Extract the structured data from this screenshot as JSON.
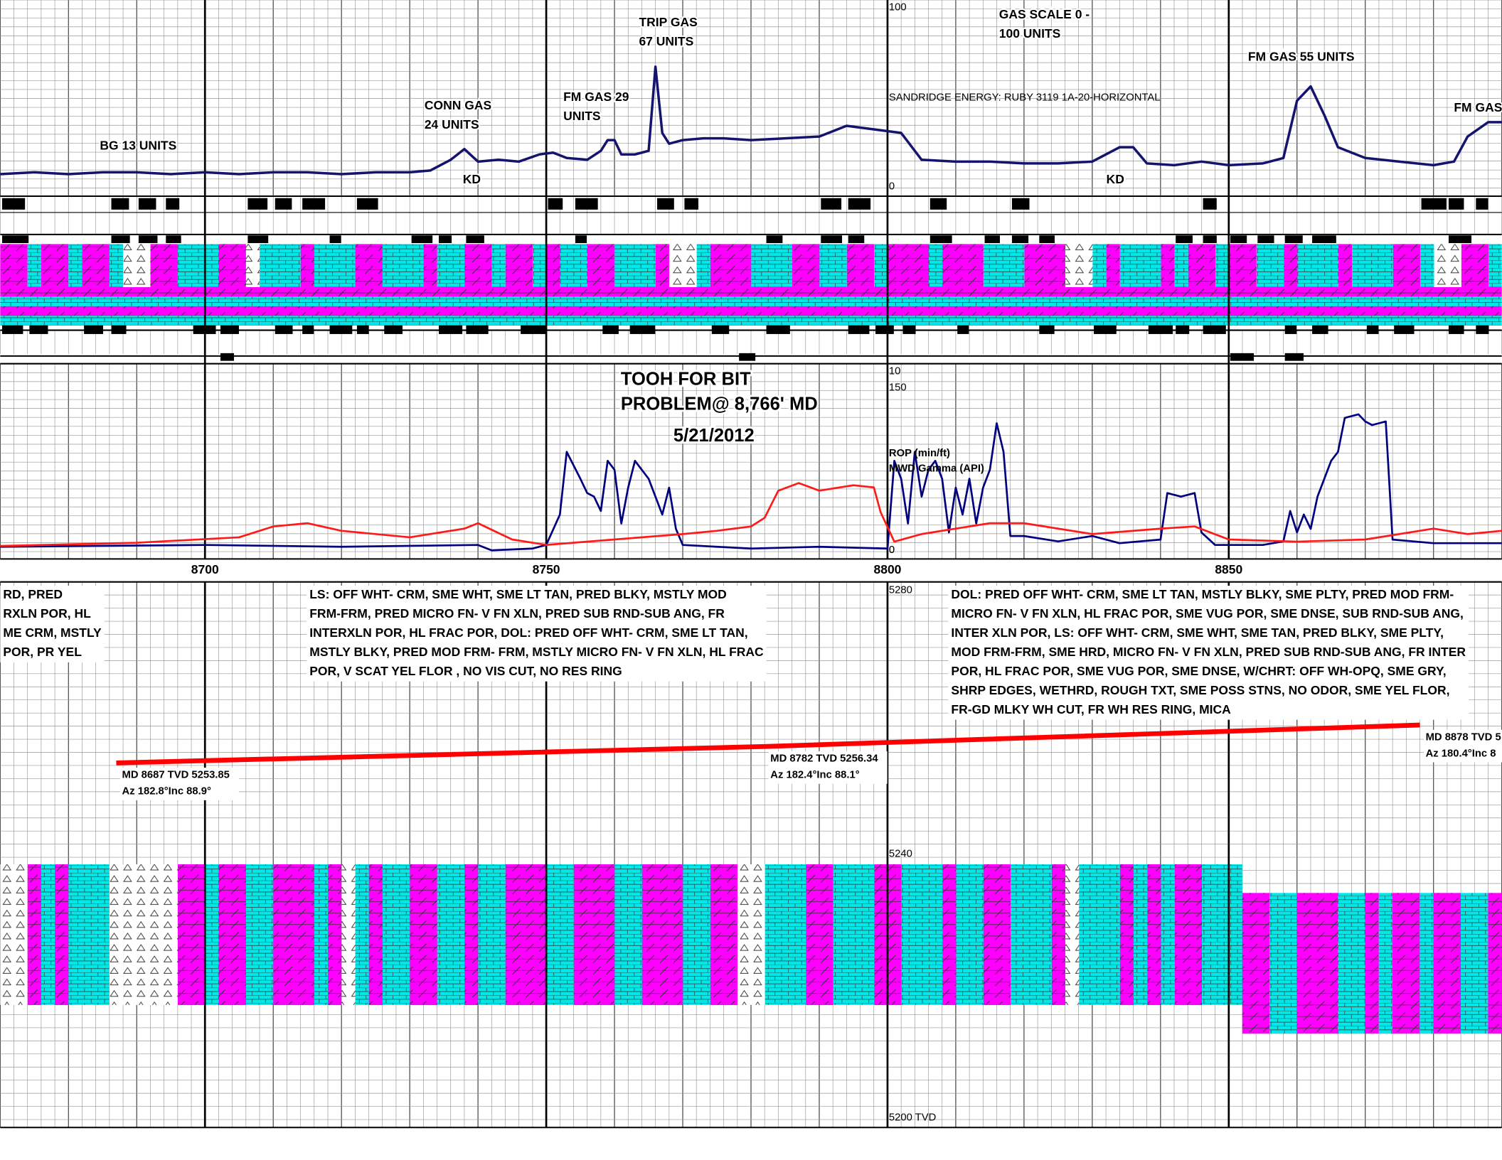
{
  "chart_data": [
    {
      "type": "line",
      "title": "SANDRIDGE ENERGY:  RUBY 3119 1A-20-HORIZONTAL",
      "xlim": [
        8670,
        8890
      ],
      "ylim": [
        0,
        100
      ],
      "yticks": [
        0,
        100
      ],
      "color": "#14146e",
      "x": [
        8670,
        8675,
        8680,
        8685,
        8690,
        8695,
        8700,
        8705,
        8710,
        8715,
        8720,
        8725,
        8730,
        8733,
        8736,
        8738,
        8740,
        8743,
        8746,
        8749,
        8751,
        8753,
        8756,
        8758,
        8759,
        8760,
        8761,
        8763,
        8765,
        8766,
        8767,
        8768,
        8770,
        8773,
        8776,
        8780,
        8785,
        8790,
        8794,
        8798,
        8800,
        8802,
        8805,
        8810,
        8815,
        8820,
        8825,
        8830,
        8834,
        8836,
        8838,
        8842,
        8846,
        8850,
        8855,
        8858,
        8860,
        8862,
        8864,
        8866,
        8870,
        8875,
        8880,
        8883,
        8885,
        8888,
        8890
      ],
      "values": [
        7,
        8,
        7,
        8,
        8,
        7,
        8,
        7,
        8,
        8,
        7,
        8,
        8,
        9,
        15,
        21,
        14,
        15,
        14,
        18,
        19,
        16,
        15,
        20,
        26,
        26,
        18,
        18,
        20,
        67,
        30,
        24,
        26,
        27,
        27,
        26,
        27,
        28,
        34,
        32,
        31,
        30,
        15,
        14,
        14,
        13,
        13,
        14,
        22,
        22,
        13,
        12,
        14,
        12,
        13,
        16,
        48,
        56,
        40,
        22,
        16,
        14,
        12,
        14,
        28,
        36,
        36
      ],
      "annotations": [
        [
          "BG 13 UNITS"
        ],
        [
          "CONN GAS",
          "24 UNITS"
        ],
        [
          "KD"
        ],
        [
          "FM GAS 29",
          "UNITS"
        ],
        [
          "TRIP GAS",
          "67 UNITS"
        ],
        [
          "GAS SCALE 0 -",
          "100 UNITS"
        ],
        [
          "KD"
        ],
        [
          "FM GAS 55 UNITS"
        ],
        [
          "FM GAS"
        ]
      ]
    },
    {
      "type": "line",
      "xlim": [
        8670,
        8890
      ],
      "xticks": [
        8700,
        8750,
        8800,
        8850
      ],
      "ylim": [
        0,
        10
      ],
      "yticks": [
        0,
        10
      ],
      "y2lim": [
        0,
        150
      ],
      "y2ticks": [
        0,
        150
      ],
      "series": [
        {
          "name": "ROP (min/ft)",
          "color": "#00007f",
          "x": [
            8670,
            8700,
            8720,
            8740,
            8742,
            8748,
            8750,
            8752,
            8753,
            8755,
            8756,
            8757,
            8758,
            8759,
            8760,
            8761,
            8762,
            8763,
            8765,
            8766,
            8767,
            8768,
            8769,
            8770,
            8775,
            8780,
            8790,
            8800,
            8801,
            8802,
            8803,
            8804,
            8805,
            8806,
            8807,
            8808,
            8809,
            8810,
            8811,
            8812,
            8813,
            8814,
            8815,
            8816,
            8817,
            8818,
            8820,
            8825,
            8830,
            8834,
            8840,
            8841,
            8843,
            8845,
            8846,
            8848,
            8855,
            8858,
            8859,
            8860,
            8861,
            8862,
            8863,
            8865,
            8866,
            8867,
            8869,
            8870,
            8871,
            8873,
            8874,
            8880,
            8885,
            8890
          ],
          "values": [
            0.2,
            0.3,
            0.2,
            0.3,
            0.0,
            0.1,
            0.3,
            2,
            5.5,
            4,
            3.2,
            3.0,
            2.2,
            5,
            4.5,
            1.5,
            3.5,
            5,
            4,
            3,
            2,
            3.5,
            1.2,
            0.3,
            0.2,
            0.1,
            0.2,
            0.1,
            5,
            4,
            1.5,
            5.5,
            3,
            4.5,
            5,
            4,
            1,
            3.5,
            2,
            4,
            1.5,
            3.5,
            4.5,
            7.1,
            5.5,
            0.8,
            0.8,
            0.5,
            0.8,
            0.4,
            0.6,
            3.2,
            3.0,
            3.2,
            1.0,
            0.3,
            0.3,
            0.5,
            2.2,
            1.0,
            2.0,
            1.2,
            3.0,
            5,
            5.5,
            7.4,
            7.6,
            7.2,
            7.0,
            7.2,
            0.6,
            0.4,
            0.4,
            0.4
          ]
        },
        {
          "name": "MWD Gamma (API)",
          "color": "#ff1a1a",
          "axis": "y2",
          "x": [
            8670,
            8690,
            8705,
            8710,
            8715,
            8720,
            8730,
            8738,
            8740,
            8745,
            8750,
            8760,
            8770,
            8775,
            8780,
            8782,
            8784,
            8787,
            8790,
            8795,
            8798,
            8799,
            8801,
            8805,
            8810,
            8815,
            8820,
            8830,
            8840,
            8845,
            8850,
            8860,
            8870,
            8880,
            8885,
            8890
          ],
          "values": [
            4,
            7,
            12,
            22,
            25,
            18,
            12,
            20,
            25,
            10,
            5,
            10,
            15,
            18,
            22,
            30,
            55,
            62,
            55,
            60,
            58,
            35,
            8,
            15,
            20,
            25,
            25,
            15,
            20,
            22,
            10,
            8,
            10,
            20,
            15,
            18
          ]
        }
      ],
      "annotations": [
        [
          "TOOH FOR BIT"
        ],
        [
          "PROBLEM@ 8,766' MD"
        ],
        [
          "5/21/2012"
        ]
      ]
    },
    {
      "type": "line",
      "xlim": [
        8670,
        8890
      ],
      "ylim": [
        5280,
        5200
      ],
      "yticks": [
        {
          "value": 5200,
          "label": "5200 TVD"
        },
        5240,
        5280
      ],
      "color": "#ff0000",
      "x": [
        8687,
        8782,
        8878
      ],
      "values": [
        5253.85,
        5256.34,
        5259.6
      ],
      "value_labels": [
        "MD 8687 TVD 5253.85",
        "MD 8782 TVD 5256.34",
        "MD 8878 TVD 5"
      ],
      "az_labels": [
        "Az 182.8°Inc 88.9°",
        "Az 182.4°Inc 88.1°",
        "Az 180.4°Inc 8"
      ]
    }
  ],
  "descriptions": [
    [
      "RD, PRED",
      "RXLN POR,  HL",
      "ME CRM, MSTLY",
      "POR,   PR YEL"
    ],
    [
      "LS:  OFF WHT- CRM, SME WHT, SME LT TAN, PRED BLKY, MSTLY MOD",
      "FRM-FRM, PRED MICRO FN- V FN XLN, PRED SUB RND-SUB ANG,  FR",
      "INTERXLN POR,  HL FRAC POR, DOL: PRED OFF WHT- CRM, SME LT TAN,",
      "MSTLY BLKY, PRED MOD FRM- FRM, MSTLY MICRO FN- V FN XLN, HL FRAC",
      "POR, V SCAT YEL FLOR , NO VIS CUT, NO RES RING"
    ],
    [
      "DOL: PRED OFF WHT- CRM, SME LT TAN, MSTLY BLKY, SME PLTY,  PRED MOD FRM-",
      "MICRO FN- V FN XLN, HL FRAC POR, SME VUG POR, SME DNSE, SUB RND-SUB ANG,",
      "INTER XLN POR, LS:  OFF WHT- CRM, SME WHT, SME  TAN, PRED BLKY, SME PLTY,",
      "MOD FRM-FRM, SME HRD, MICRO FN- V FN XLN, PRED SUB RND-SUB ANG,  FR INTER",
      "POR,  HL FRAC POR, SME VUG POR, SME DNSE, W/CHRT: OFF WH-OPQ, SME GRY,",
      "SHRP EDGES, WETHRD, ROUGH TXT, SME POSS STNS, NO ODOR,  SME YEL FLOR,",
      "FR-GD MLKY WH CUT,  FR WH RES RING, MICA"
    ]
  ]
}
